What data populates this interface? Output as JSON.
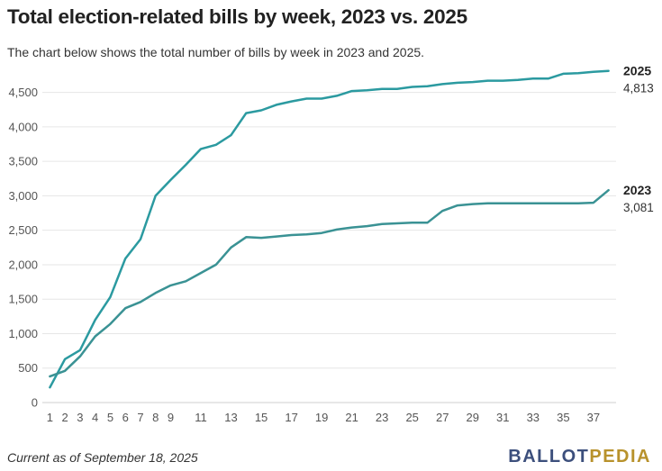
{
  "title": "Total election-related bills by week, 2023 vs. 2025",
  "subtitle": "The chart below shows the total number of bills by week in 2023 and 2025.",
  "footer_note": "Current as of September 18, 2025",
  "logo": {
    "part1": "BALLOT",
    "part2": "PEDIA"
  },
  "colors": {
    "line_2025": "#2b9aa0",
    "line_2023": "#3a9294",
    "grid": "#e6e6e6",
    "text": "#333333"
  },
  "chart_data": {
    "type": "line",
    "title": "Total election-related bills by week, 2023 vs. 2025",
    "xlabel": "",
    "ylabel": "",
    "x": [
      1,
      2,
      3,
      4,
      5,
      6,
      7,
      8,
      9,
      10,
      11,
      12,
      13,
      14,
      15,
      16,
      17,
      18,
      19,
      20,
      21,
      22,
      23,
      24,
      25,
      26,
      27,
      28,
      29,
      30,
      31,
      32,
      33,
      34,
      35,
      36,
      37,
      38
    ],
    "xticks": [
      1,
      2,
      3,
      4,
      5,
      6,
      7,
      8,
      9,
      11,
      13,
      15,
      17,
      19,
      21,
      23,
      25,
      27,
      29,
      31,
      33,
      35,
      37
    ],
    "yticks": [
      0,
      500,
      1000,
      1500,
      2000,
      2500,
      3000,
      3500,
      4000,
      4500
    ],
    "ytick_labels": [
      "0",
      "500",
      "1,000",
      "1,500",
      "2,000",
      "2,500",
      "3,000",
      "3,500",
      "4,000",
      "4,500"
    ],
    "xlim": [
      0.5,
      38.5
    ],
    "ylim": [
      0,
      4900
    ],
    "grid": true,
    "series": [
      {
        "name": "2025",
        "end_label": "4,813",
        "values": [
          220,
          630,
          760,
          1200,
          1530,
          2090,
          2370,
          3000,
          3230,
          3450,
          3680,
          3740,
          3880,
          4200,
          4240,
          4320,
          4370,
          4410,
          4410,
          4450,
          4520,
          4530,
          4550,
          4550,
          4580,
          4590,
          4620,
          4640,
          4650,
          4670,
          4670,
          4680,
          4700,
          4700,
          4770,
          4780,
          4800,
          4813
        ]
      },
      {
        "name": "2023",
        "end_label": "3,081",
        "values": [
          380,
          460,
          670,
          960,
          1140,
          1370,
          1460,
          1590,
          1700,
          1760,
          1880,
          2000,
          2250,
          2400,
          2390,
          2410,
          2430,
          2440,
          2460,
          2510,
          2540,
          2560,
          2590,
          2600,
          2610,
          2610,
          2780,
          2860,
          2880,
          2890,
          2890,
          2890,
          2890,
          2890,
          2890,
          2890,
          2900,
          3081
        ]
      }
    ]
  }
}
